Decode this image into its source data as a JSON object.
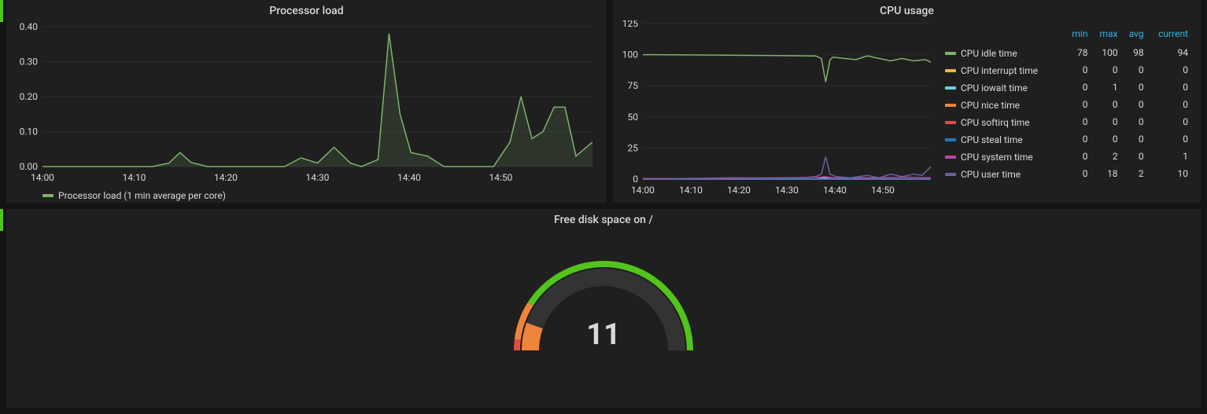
{
  "colors": {
    "panel_bg": "#1f1f1f",
    "page_bg": "#141414",
    "grid": "#2c2c2c",
    "text": "#d8d9da",
    "header_blue": "#33b5e5",
    "accent_green": "#52c41a"
  },
  "processor_load": {
    "title": "Processor load",
    "type": "line-area",
    "legend_label": "Processor load (1 min average per core)",
    "series_color": "#7eb26d",
    "fill_color": "rgba(126,178,109,0.15)",
    "xlim": [
      "14:00",
      "14:57"
    ],
    "xticks": [
      "14:00",
      "14:10",
      "14:20",
      "14:30",
      "14:40",
      "14:50"
    ],
    "ylim": [
      0,
      0.4
    ],
    "yticks": [
      0,
      0.1,
      0.2,
      0.3,
      0.4
    ],
    "points": [
      {
        "t": 0.0,
        "v": 0.0
      },
      {
        "t": 0.04,
        "v": 0.0
      },
      {
        "t": 0.08,
        "v": 0.0
      },
      {
        "t": 0.12,
        "v": 0.0
      },
      {
        "t": 0.16,
        "v": 0.0
      },
      {
        "t": 0.2,
        "v": 0.0
      },
      {
        "t": 0.23,
        "v": 0.01
      },
      {
        "t": 0.25,
        "v": 0.04
      },
      {
        "t": 0.27,
        "v": 0.012
      },
      {
        "t": 0.3,
        "v": 0.0
      },
      {
        "t": 0.33,
        "v": 0.0
      },
      {
        "t": 0.36,
        "v": 0.0
      },
      {
        "t": 0.4,
        "v": 0.0
      },
      {
        "t": 0.44,
        "v": 0.0
      },
      {
        "t": 0.47,
        "v": 0.025
      },
      {
        "t": 0.5,
        "v": 0.01
      },
      {
        "t": 0.53,
        "v": 0.055
      },
      {
        "t": 0.56,
        "v": 0.01
      },
      {
        "t": 0.58,
        "v": 0.0
      },
      {
        "t": 0.61,
        "v": 0.02
      },
      {
        "t": 0.63,
        "v": 0.38
      },
      {
        "t": 0.65,
        "v": 0.15
      },
      {
        "t": 0.67,
        "v": 0.04
      },
      {
        "t": 0.7,
        "v": 0.03
      },
      {
        "t": 0.73,
        "v": 0.0
      },
      {
        "t": 0.76,
        "v": 0.0
      },
      {
        "t": 0.79,
        "v": 0.0
      },
      {
        "t": 0.82,
        "v": 0.0
      },
      {
        "t": 0.85,
        "v": 0.07
      },
      {
        "t": 0.87,
        "v": 0.2
      },
      {
        "t": 0.89,
        "v": 0.08
      },
      {
        "t": 0.91,
        "v": 0.1
      },
      {
        "t": 0.93,
        "v": 0.17
      },
      {
        "t": 0.95,
        "v": 0.17
      },
      {
        "t": 0.97,
        "v": 0.03
      },
      {
        "t": 1.0,
        "v": 0.07
      }
    ]
  },
  "cpu_usage": {
    "title": "CPU usage",
    "type": "line",
    "xlim": [
      "14:00",
      "14:57"
    ],
    "xticks": [
      "14:00",
      "14:10",
      "14:20",
      "14:30",
      "14:40",
      "14:50"
    ],
    "ylim": [
      0,
      125
    ],
    "yticks": [
      0,
      25,
      50,
      75,
      100,
      125
    ],
    "headers": [
      "",
      "min",
      "max",
      "avg",
      "current"
    ],
    "series": [
      {
        "name": "CPU idle time",
        "color": "#7eb26d",
        "min": 78,
        "max": 100,
        "avg": 98,
        "current": 94,
        "points": [
          {
            "t": 0,
            "v": 100
          },
          {
            "t": 0.04,
            "v": 100
          },
          {
            "t": 0.6,
            "v": 99
          },
          {
            "t": 0.62,
            "v": 97
          },
          {
            "t": 0.635,
            "v": 78
          },
          {
            "t": 0.65,
            "v": 96
          },
          {
            "t": 0.66,
            "v": 98
          },
          {
            "t": 0.7,
            "v": 97
          },
          {
            "t": 0.74,
            "v": 96
          },
          {
            "t": 0.78,
            "v": 99
          },
          {
            "t": 0.82,
            "v": 97
          },
          {
            "t": 0.86,
            "v": 95
          },
          {
            "t": 0.9,
            "v": 97
          },
          {
            "t": 0.94,
            "v": 95
          },
          {
            "t": 0.98,
            "v": 96
          },
          {
            "t": 1.0,
            "v": 94
          }
        ]
      },
      {
        "name": "CPU interrupt time",
        "color": "#eab839",
        "min": 0,
        "max": 0,
        "avg": 0,
        "current": 0,
        "points": [
          {
            "t": 0,
            "v": 0
          },
          {
            "t": 1,
            "v": 0
          }
        ]
      },
      {
        "name": "CPU iowait time",
        "color": "#6ed0e0",
        "min": 0,
        "max": 1,
        "avg": 0,
        "current": 0,
        "points": [
          {
            "t": 0,
            "v": 0
          },
          {
            "t": 0.6,
            "v": 0
          },
          {
            "t": 0.63,
            "v": 1
          },
          {
            "t": 0.66,
            "v": 0
          },
          {
            "t": 1,
            "v": 0
          }
        ]
      },
      {
        "name": "CPU nice time",
        "color": "#ef843c",
        "min": 0,
        "max": 0,
        "avg": 0,
        "current": 0,
        "points": [
          {
            "t": 0,
            "v": 0
          },
          {
            "t": 1,
            "v": 0
          }
        ]
      },
      {
        "name": "CPU softirq time",
        "color": "#e24d42",
        "min": 0,
        "max": 0,
        "avg": 0,
        "current": 0,
        "points": [
          {
            "t": 0,
            "v": 0
          },
          {
            "t": 1,
            "v": 0
          }
        ]
      },
      {
        "name": "CPU steal time",
        "color": "#1f78c1",
        "min": 0,
        "max": 0,
        "avg": 0,
        "current": 0,
        "points": [
          {
            "t": 0,
            "v": 0
          },
          {
            "t": 1,
            "v": 0
          }
        ]
      },
      {
        "name": "CPU system time",
        "color": "#ba43a9",
        "min": 0,
        "max": 2,
        "avg": 0,
        "current": 1,
        "points": [
          {
            "t": 0,
            "v": 0.5
          },
          {
            "t": 0.3,
            "v": 0.5
          },
          {
            "t": 0.5,
            "v": 1
          },
          {
            "t": 0.62,
            "v": 1.5
          },
          {
            "t": 0.63,
            "v": 2
          },
          {
            "t": 0.66,
            "v": 1
          },
          {
            "t": 0.8,
            "v": 1
          },
          {
            "t": 0.92,
            "v": 1.5
          },
          {
            "t": 1,
            "v": 1
          }
        ]
      },
      {
        "name": "CPU user time",
        "color": "#705da0",
        "min": 0,
        "max": 18,
        "avg": 2,
        "current": 10,
        "points": [
          {
            "t": 0,
            "v": 0
          },
          {
            "t": 0.3,
            "v": 1
          },
          {
            "t": 0.55,
            "v": 1
          },
          {
            "t": 0.6,
            "v": 2
          },
          {
            "t": 0.62,
            "v": 4
          },
          {
            "t": 0.635,
            "v": 18
          },
          {
            "t": 0.65,
            "v": 4
          },
          {
            "t": 0.67,
            "v": 2
          },
          {
            "t": 0.72,
            "v": 1
          },
          {
            "t": 0.78,
            "v": 3
          },
          {
            "t": 0.82,
            "v": 1
          },
          {
            "t": 0.86,
            "v": 4
          },
          {
            "t": 0.9,
            "v": 2
          },
          {
            "t": 0.94,
            "v": 4
          },
          {
            "t": 0.97,
            "v": 3
          },
          {
            "t": 1.0,
            "v": 10
          }
        ]
      }
    ]
  },
  "disk_gauge": {
    "title": "Free disk space on /",
    "type": "gauge",
    "value": 11,
    "min": 0,
    "max": 100,
    "track_color": "#333333",
    "segments": [
      {
        "from": 0,
        "to": 4,
        "color": "#e24d42"
      },
      {
        "from": 4,
        "to": 18,
        "color": "#ef843c"
      },
      {
        "from": 18,
        "to": 100,
        "color": "#52c41a"
      }
    ],
    "arc_width_outer": 28,
    "arc_width_fill": 22,
    "value_fontsize": 38,
    "value_color": "#d8d9da"
  }
}
